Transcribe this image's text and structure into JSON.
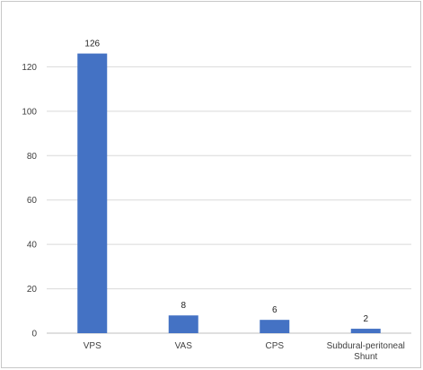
{
  "chart_data": {
    "type": "bar",
    "categories": [
      "VPS",
      "VAS",
      "CPS",
      "Subdural-peritoneal Shunt"
    ],
    "category_lines": [
      [
        "VPS"
      ],
      [
        "VAS"
      ],
      [
        "CPS"
      ],
      [
        "Subdural-peritoneal",
        "Shunt"
      ]
    ],
    "values": [
      126,
      8,
      6,
      2
    ],
    "data_labels": [
      "126",
      "8",
      "6",
      "2"
    ],
    "title": "",
    "xlabel": "",
    "ylabel": "",
    "ylim": [
      0,
      140
    ],
    "yticks": [
      0,
      20,
      40,
      60,
      80,
      100,
      120
    ],
    "grid": true,
    "legend": "none",
    "bar_color": "#4472C4",
    "grid_color": "#d9d9d9"
  }
}
